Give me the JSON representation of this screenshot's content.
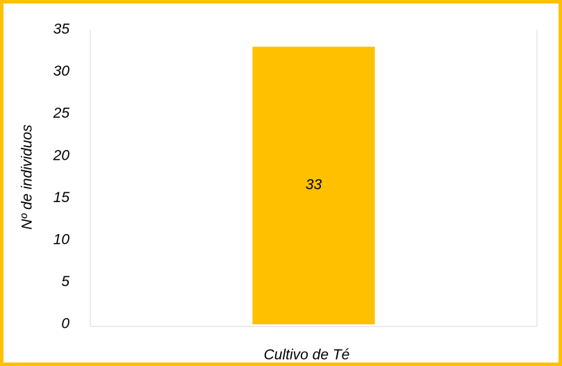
{
  "chart_data": {
    "type": "bar",
    "ylabel": "Nº de individuos",
    "categories": [
      "Cultivo de Té"
    ],
    "values": [
      33
    ],
    "color": "#ffc000",
    "ylim": [
      0,
      35
    ],
    "yticks": [
      0,
      5,
      10,
      15,
      20,
      25,
      30,
      35
    ],
    "grid": false
  }
}
